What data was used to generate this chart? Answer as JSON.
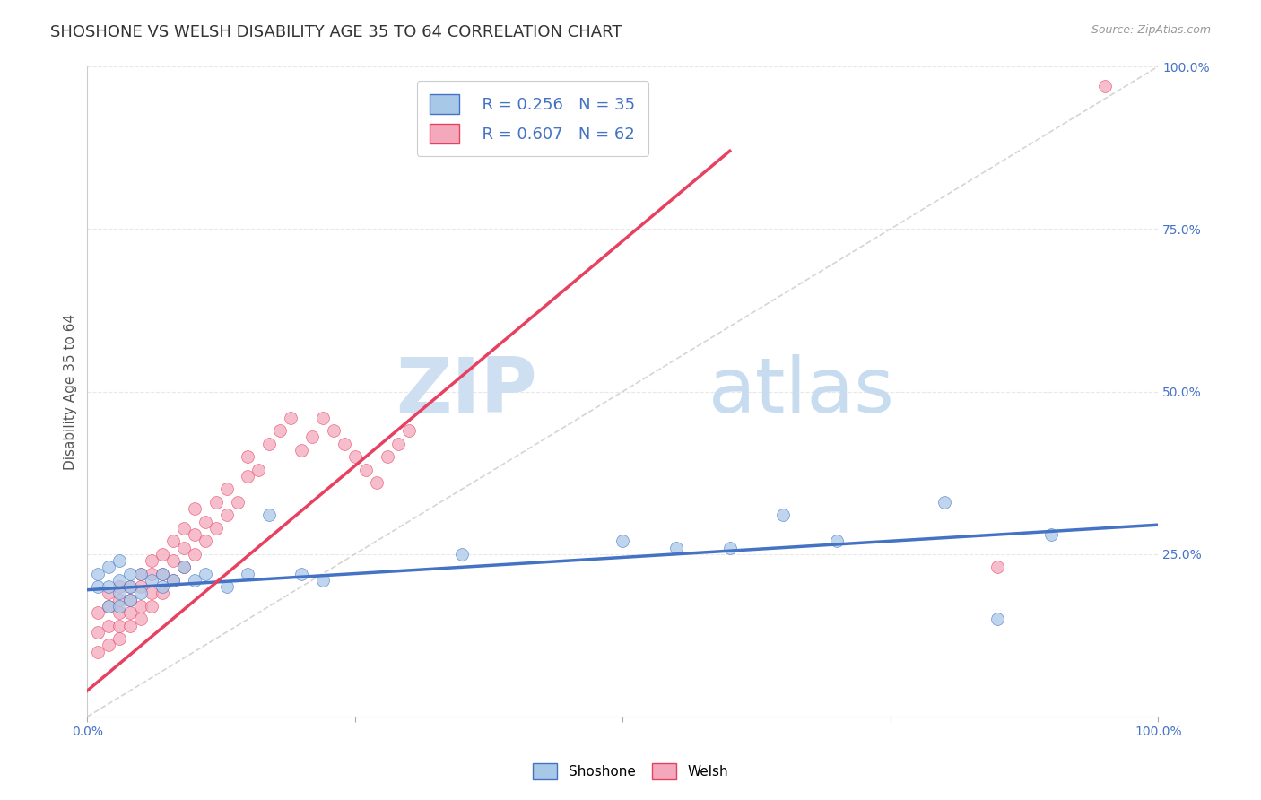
{
  "title": "SHOSHONE VS WELSH DISABILITY AGE 35 TO 64 CORRELATION CHART",
  "source": "Source: ZipAtlas.com",
  "ylabel": "Disability Age 35 to 64",
  "xlim": [
    0,
    1.0
  ],
  "ylim": [
    0,
    1.0
  ],
  "shoshone_color": "#a8c8e8",
  "welsh_color": "#f4a8bc",
  "shoshone_line_color": "#4472c4",
  "welsh_line_color": "#e84060",
  "legend_r_shoshone": "R = 0.256",
  "legend_n_shoshone": "N = 35",
  "legend_r_welsh": "R = 0.607",
  "legend_n_welsh": "N = 62",
  "shoshone_x": [
    0.01,
    0.01,
    0.02,
    0.02,
    0.02,
    0.03,
    0.03,
    0.03,
    0.03,
    0.04,
    0.04,
    0.04,
    0.05,
    0.05,
    0.06,
    0.07,
    0.07,
    0.08,
    0.09,
    0.1,
    0.11,
    0.13,
    0.15,
    0.17,
    0.2,
    0.22,
    0.35,
    0.5,
    0.55,
    0.6,
    0.65,
    0.7,
    0.8,
    0.85,
    0.9
  ],
  "shoshone_y": [
    0.2,
    0.22,
    0.17,
    0.2,
    0.23,
    0.17,
    0.19,
    0.21,
    0.24,
    0.18,
    0.2,
    0.22,
    0.19,
    0.22,
    0.21,
    0.2,
    0.22,
    0.21,
    0.23,
    0.21,
    0.22,
    0.2,
    0.22,
    0.31,
    0.22,
    0.21,
    0.25,
    0.27,
    0.26,
    0.26,
    0.31,
    0.27,
    0.33,
    0.15,
    0.28
  ],
  "welsh_x": [
    0.01,
    0.01,
    0.01,
    0.02,
    0.02,
    0.02,
    0.02,
    0.03,
    0.03,
    0.03,
    0.03,
    0.03,
    0.04,
    0.04,
    0.04,
    0.04,
    0.05,
    0.05,
    0.05,
    0.05,
    0.06,
    0.06,
    0.06,
    0.06,
    0.07,
    0.07,
    0.07,
    0.08,
    0.08,
    0.08,
    0.09,
    0.09,
    0.09,
    0.1,
    0.1,
    0.1,
    0.11,
    0.11,
    0.12,
    0.12,
    0.13,
    0.13,
    0.14,
    0.15,
    0.15,
    0.16,
    0.17,
    0.18,
    0.19,
    0.2,
    0.21,
    0.22,
    0.23,
    0.24,
    0.25,
    0.26,
    0.27,
    0.28,
    0.29,
    0.3,
    0.85,
    0.95
  ],
  "welsh_y": [
    0.1,
    0.13,
    0.16,
    0.11,
    0.14,
    0.17,
    0.19,
    0.12,
    0.14,
    0.16,
    0.18,
    0.2,
    0.14,
    0.16,
    0.18,
    0.2,
    0.15,
    0.17,
    0.2,
    0.22,
    0.17,
    0.19,
    0.22,
    0.24,
    0.19,
    0.22,
    0.25,
    0.21,
    0.24,
    0.27,
    0.23,
    0.26,
    0.29,
    0.25,
    0.28,
    0.32,
    0.27,
    0.3,
    0.29,
    0.33,
    0.31,
    0.35,
    0.33,
    0.37,
    0.4,
    0.38,
    0.42,
    0.44,
    0.46,
    0.41,
    0.43,
    0.46,
    0.44,
    0.42,
    0.4,
    0.38,
    0.36,
    0.4,
    0.42,
    0.44,
    0.23,
    0.97
  ],
  "background_color": "#ffffff",
  "watermark_zip_color": "#c8dff0",
  "watermark_atlas_color": "#c8ddf0",
  "grid_color": "#e8e8e8",
  "ref_line_color": "#d0c8c8",
  "title_fontsize": 13,
  "axis_label_fontsize": 11,
  "tick_fontsize": 10,
  "legend_fontsize": 13
}
